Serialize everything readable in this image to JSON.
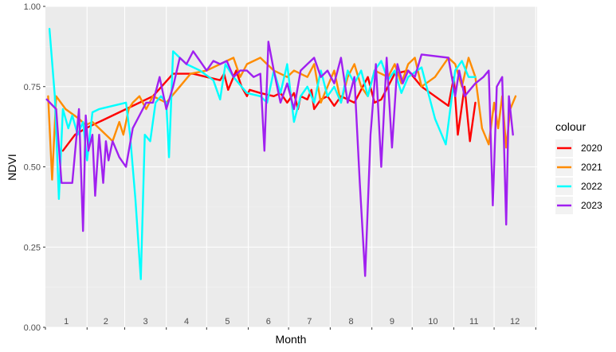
{
  "chart_data": {
    "type": "line",
    "xlabel": "Month",
    "ylabel": "NDVI",
    "ylim": [
      0,
      1
    ],
    "xlim": [
      0,
      366
    ],
    "y_ticks": [
      "0.00",
      "0.25",
      "0.50",
      "0.75",
      "1.00"
    ],
    "month_labels": [
      "1",
      "2",
      "3",
      "4",
      "5",
      "6",
      "7",
      "8",
      "9",
      "10",
      "11",
      "12"
    ],
    "grid": true,
    "legend": {
      "title": "colour",
      "position": "right"
    },
    "series": [
      {
        "name": "2020",
        "color": "#ff0000",
        "points": [
          [
            13,
            0.55
          ],
          [
            22,
            0.6
          ],
          [
            30,
            0.62
          ],
          [
            40,
            0.64
          ],
          [
            60,
            0.68
          ],
          [
            80,
            0.72
          ],
          [
            95,
            0.79
          ],
          [
            110,
            0.79
          ],
          [
            120,
            0.78
          ],
          [
            130,
            0.77
          ],
          [
            133,
            0.79
          ],
          [
            136,
            0.74
          ],
          [
            140,
            0.78
          ],
          [
            142,
            0.8
          ],
          [
            146,
            0.75
          ],
          [
            150,
            0.72
          ],
          [
            152,
            0.74
          ],
          [
            160,
            0.73
          ],
          [
            170,
            0.72
          ],
          [
            175,
            0.73
          ],
          [
            180,
            0.7
          ],
          [
            185,
            0.73
          ],
          [
            188,
            0.68
          ],
          [
            190,
            0.72
          ],
          [
            195,
            0.71
          ],
          [
            198,
            0.74
          ],
          [
            200,
            0.68
          ],
          [
            205,
            0.71
          ],
          [
            210,
            0.72
          ],
          [
            215,
            0.69
          ],
          [
            220,
            0.72
          ],
          [
            230,
            0.7
          ],
          [
            240,
            0.78
          ],
          [
            245,
            0.7
          ],
          [
            250,
            0.71
          ],
          [
            260,
            0.79
          ],
          [
            270,
            0.8
          ],
          [
            280,
            0.75
          ],
          [
            300,
            0.69
          ],
          [
            304,
            0.78
          ],
          [
            307,
            0.6
          ],
          [
            312,
            0.75
          ],
          [
            316,
            0.58
          ],
          [
            320,
            0.7
          ]
        ]
      },
      {
        "name": "2021",
        "color": "#ff8c00",
        "points": [
          [
            2,
            0.72
          ],
          [
            5,
            0.46
          ],
          [
            8,
            0.72
          ],
          [
            15,
            0.68
          ],
          [
            25,
            0.65
          ],
          [
            30,
            0.63
          ],
          [
            35,
            0.64
          ],
          [
            45,
            0.6
          ],
          [
            50,
            0.58
          ],
          [
            55,
            0.64
          ],
          [
            58,
            0.6
          ],
          [
            62,
            0.68
          ],
          [
            65,
            0.7
          ],
          [
            70,
            0.72
          ],
          [
            75,
            0.68
          ],
          [
            80,
            0.72
          ],
          [
            90,
            0.7
          ],
          [
            100,
            0.75
          ],
          [
            108,
            0.79
          ],
          [
            120,
            0.8
          ],
          [
            130,
            0.82
          ],
          [
            140,
            0.84
          ],
          [
            145,
            0.78
          ],
          [
            150,
            0.82
          ],
          [
            160,
            0.84
          ],
          [
            170,
            0.8
          ],
          [
            180,
            0.78
          ],
          [
            185,
            0.8
          ],
          [
            195,
            0.78
          ],
          [
            200,
            0.82
          ],
          [
            205,
            0.7
          ],
          [
            210,
            0.75
          ],
          [
            215,
            0.8
          ],
          [
            220,
            0.7
          ],
          [
            225,
            0.78
          ],
          [
            230,
            0.82
          ],
          [
            235,
            0.75
          ],
          [
            240,
            0.72
          ],
          [
            245,
            0.8
          ],
          [
            255,
            0.78
          ],
          [
            260,
            0.82
          ],
          [
            265,
            0.76
          ],
          [
            270,
            0.82
          ],
          [
            275,
            0.84
          ],
          [
            280,
            0.75
          ],
          [
            290,
            0.78
          ],
          [
            300,
            0.84
          ],
          [
            305,
            0.82
          ],
          [
            310,
            0.75
          ],
          [
            315,
            0.84
          ],
          [
            320,
            0.78
          ],
          [
            325,
            0.62
          ],
          [
            330,
            0.57
          ],
          [
            334,
            0.7
          ],
          [
            337,
            0.62
          ],
          [
            340,
            0.72
          ],
          [
            343,
            0.56
          ],
          [
            346,
            0.68
          ],
          [
            350,
            0.72
          ]
        ]
      },
      {
        "name": "2022",
        "color": "#00ffff",
        "points": [
          [
            3,
            0.93
          ],
          [
            7,
            0.72
          ],
          [
            10,
            0.4
          ],
          [
            13,
            0.68
          ],
          [
            17,
            0.62
          ],
          [
            20,
            0.66
          ],
          [
            24,
            0.6
          ],
          [
            28,
            0.64
          ],
          [
            31,
            0.52
          ],
          [
            35,
            0.67
          ],
          [
            40,
            0.68
          ],
          [
            50,
            0.69
          ],
          [
            60,
            0.7
          ],
          [
            63,
            0.6
          ],
          [
            67,
            0.4
          ],
          [
            71,
            0.15
          ],
          [
            74,
            0.6
          ],
          [
            78,
            0.58
          ],
          [
            82,
            0.7
          ],
          [
            86,
            0.72
          ],
          [
            90,
            0.7
          ],
          [
            92,
            0.53
          ],
          [
            95,
            0.86
          ],
          [
            100,
            0.84
          ],
          [
            105,
            0.82
          ],
          [
            115,
            0.8
          ],
          [
            125,
            0.77
          ],
          [
            130,
            0.71
          ],
          [
            134,
            0.82
          ],
          [
            140,
            0.78
          ],
          [
            150,
            0.73
          ],
          [
            160,
            0.72
          ],
          [
            165,
            0.7
          ],
          [
            170,
            0.8
          ],
          [
            175,
            0.73
          ],
          [
            180,
            0.82
          ],
          [
            185,
            0.64
          ],
          [
            190,
            0.72
          ],
          [
            195,
            0.75
          ],
          [
            200,
            0.7
          ],
          [
            205,
            0.8
          ],
          [
            210,
            0.72
          ],
          [
            215,
            0.75
          ],
          [
            220,
            0.7
          ],
          [
            225,
            0.8
          ],
          [
            230,
            0.76
          ],
          [
            235,
            0.8
          ],
          [
            240,
            0.72
          ],
          [
            245,
            0.8
          ],
          [
            250,
            0.83
          ],
          [
            255,
            0.77
          ],
          [
            260,
            0.8
          ],
          [
            265,
            0.73
          ],
          [
            270,
            0.78
          ],
          [
            280,
            0.81
          ],
          [
            290,
            0.65
          ],
          [
            298,
            0.57
          ],
          [
            305,
            0.8
          ],
          [
            310,
            0.83
          ],
          [
            315,
            0.78
          ],
          [
            320,
            0.78
          ]
        ]
      },
      {
        "name": "2023",
        "color": "#a020f0",
        "points": [
          [
            1,
            0.71
          ],
          [
            8,
            0.68
          ],
          [
            12,
            0.45
          ],
          [
            20,
            0.45
          ],
          [
            25,
            0.68
          ],
          [
            28,
            0.3
          ],
          [
            30,
            0.66
          ],
          [
            32,
            0.55
          ],
          [
            35,
            0.6
          ],
          [
            37,
            0.41
          ],
          [
            40,
            0.6
          ],
          [
            43,
            0.45
          ],
          [
            45,
            0.58
          ],
          [
            47,
            0.52
          ],
          [
            50,
            0.58
          ],
          [
            55,
            0.53
          ],
          [
            60,
            0.5
          ],
          [
            65,
            0.62
          ],
          [
            70,
            0.66
          ],
          [
            75,
            0.7
          ],
          [
            80,
            0.7
          ],
          [
            85,
            0.78
          ],
          [
            90,
            0.68
          ],
          [
            95,
            0.75
          ],
          [
            100,
            0.84
          ],
          [
            105,
            0.82
          ],
          [
            110,
            0.86
          ],
          [
            115,
            0.83
          ],
          [
            120,
            0.8
          ],
          [
            125,
            0.83
          ],
          [
            130,
            0.82
          ],
          [
            135,
            0.83
          ],
          [
            140,
            0.78
          ],
          [
            145,
            0.8
          ],
          [
            150,
            0.8
          ],
          [
            155,
            0.78
          ],
          [
            160,
            0.79
          ],
          [
            163,
            0.55
          ],
          [
            166,
            0.89
          ],
          [
            170,
            0.8
          ],
          [
            175,
            0.7
          ],
          [
            180,
            0.76
          ],
          [
            185,
            0.68
          ],
          [
            190,
            0.8
          ],
          [
            195,
            0.82
          ],
          [
            200,
            0.84
          ],
          [
            205,
            0.78
          ],
          [
            210,
            0.8
          ],
          [
            215,
            0.76
          ],
          [
            220,
            0.84
          ],
          [
            225,
            0.7
          ],
          [
            230,
            0.78
          ],
          [
            234,
            0.45
          ],
          [
            238,
            0.16
          ],
          [
            242,
            0.6
          ],
          [
            246,
            0.82
          ],
          [
            250,
            0.5
          ],
          [
            254,
            0.84
          ],
          [
            258,
            0.56
          ],
          [
            262,
            0.82
          ],
          [
            266,
            0.76
          ],
          [
            270,
            0.8
          ],
          [
            275,
            0.78
          ],
          [
            280,
            0.85
          ],
          [
            300,
            0.84
          ],
          [
            305,
            0.72
          ],
          [
            308,
            0.8
          ],
          [
            312,
            0.72
          ],
          [
            316,
            0.74
          ],
          [
            320,
            0.76
          ],
          [
            326,
            0.78
          ],
          [
            330,
            0.8
          ],
          [
            333,
            0.38
          ],
          [
            336,
            0.75
          ],
          [
            340,
            0.78
          ],
          [
            343,
            0.32
          ],
          [
            345,
            0.72
          ],
          [
            348,
            0.6
          ]
        ]
      }
    ]
  }
}
